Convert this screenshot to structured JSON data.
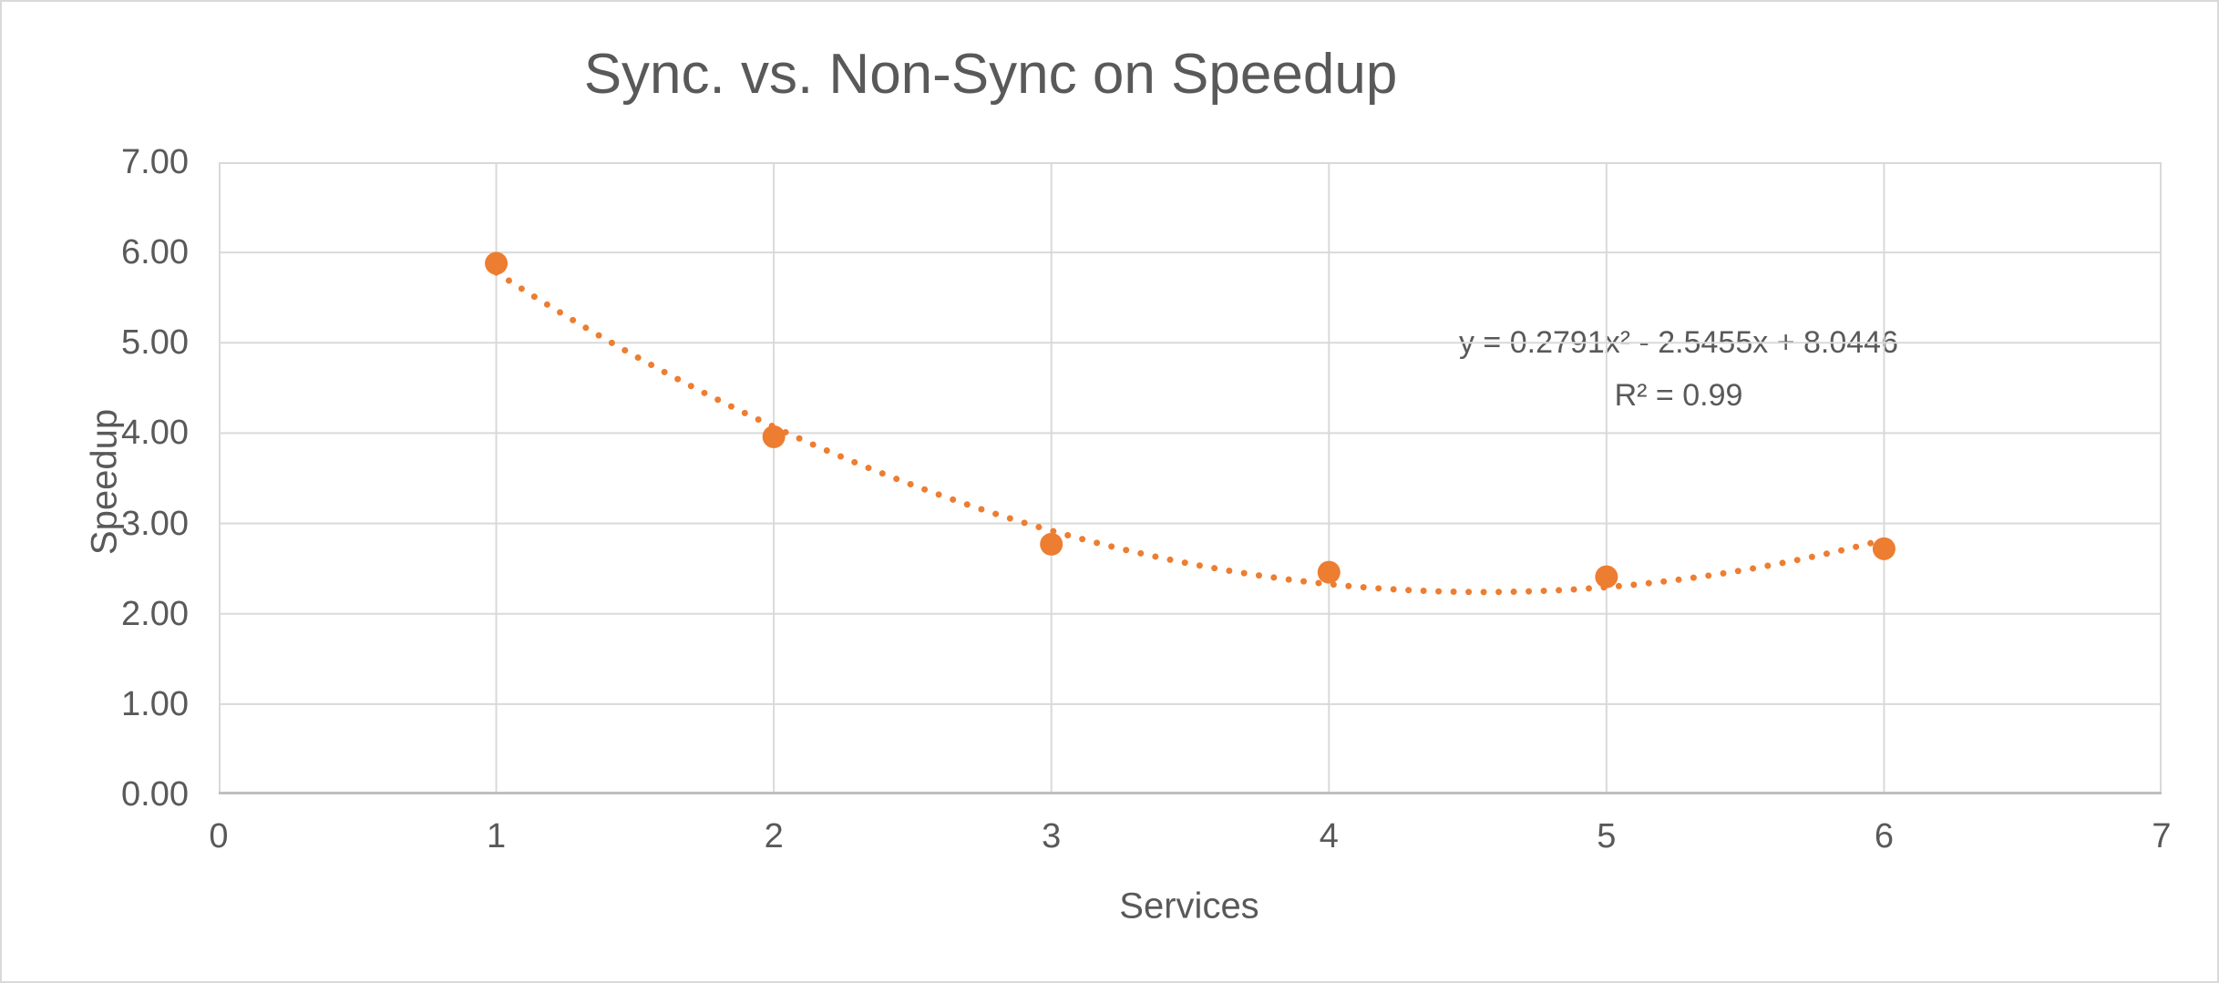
{
  "chart_data": {
    "type": "scatter",
    "title": "Sync. vs. Non-Sync on Speedup",
    "xlabel": "Services",
    "ylabel": "Speedup",
    "x": [
      1,
      2,
      3,
      4,
      5,
      6
    ],
    "y": [
      5.88,
      3.96,
      2.77,
      2.46,
      2.41,
      2.72
    ],
    "xlim": [
      0,
      7
    ],
    "ylim": [
      0,
      7
    ],
    "x_tick_labels": [
      "0",
      "1",
      "2",
      "3",
      "4",
      "5",
      "6",
      "7"
    ],
    "y_tick_labels": [
      "0.00",
      "1.00",
      "2.00",
      "3.00",
      "4.00",
      "5.00",
      "6.00",
      "7.00"
    ],
    "grid": "on",
    "legend": "none",
    "marker_color": "#ED7D31",
    "trendline": {
      "kind": "polynomial",
      "order": 2,
      "coefficients": {
        "a": 0.2791,
        "b": -2.5455,
        "c": 8.0446
      },
      "range": [
        1,
        6
      ],
      "style": "dotted",
      "color": "#ED7D31",
      "label": "y = 0.2791x² - 2.5455x + 8.0446",
      "r2_label": "R² = 0.99"
    },
    "colors": {
      "gridline": "#D9D9D9",
      "axis_line": "#BFBFBF",
      "text": "#595959",
      "frame_border": "#D9D9D9",
      "background": "#FFFFFF"
    }
  }
}
